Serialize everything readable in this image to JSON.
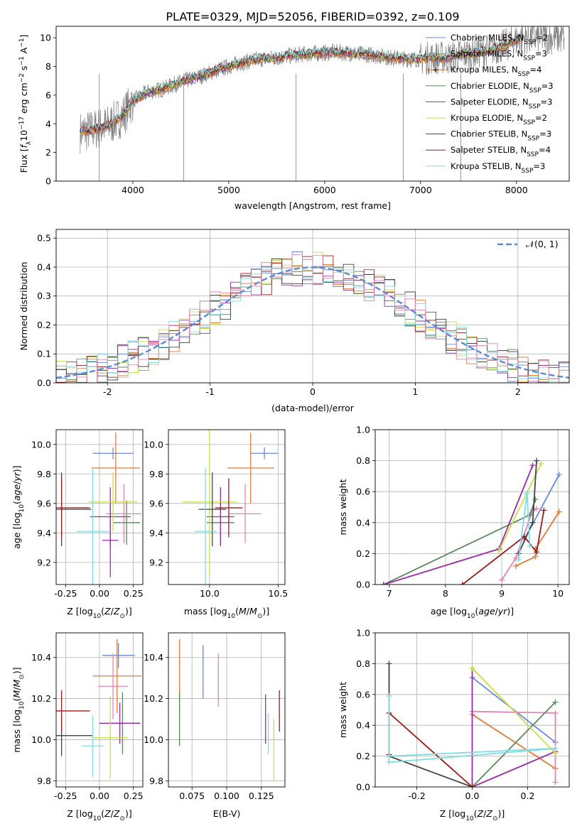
{
  "title": "PLATE=0329, MJD=52056, FIBERID=0392, z=0.109",
  "colors": {
    "MILES_Chabrier": "#6a89d6",
    "MILES_Salpeter": "#e07b39",
    "MILES_Kroupa": "#d9722b",
    "ELODIE_Chabrier": "#5a8a5a",
    "ELODIE_Salpeter": "#9b2aa8",
    "ELODIE_Kroupa": "#c8de4a",
    "STELIB_Chabrier": "#444444",
    "STELIB_Salpeter": "#9c1c1c",
    "STELIB_Kroupa": "#7fdde0",
    "pink": "#e882b4",
    "data": "#808080",
    "normal": "#5b8bd6"
  },
  "chart_data": [
    {
      "id": "spectrum",
      "type": "line",
      "xlabel": "wavelength [Angstrom, rest frame]",
      "ylabel": "Flux [f_λ 10^-17 erg cm^-2 s^-1 A^-1]",
      "xlim": [
        3200,
        8550
      ],
      "ylim": [
        0,
        10.8
      ],
      "xticks": [
        4000,
        5000,
        6000,
        7000,
        8000
      ],
      "yticks": [
        0,
        2,
        4,
        6,
        8,
        10
      ],
      "legend_position": "top-right",
      "legend": [
        {
          "label": "Chabrier MILES, N",
          "sub": "SSP",
          "eq": "=2",
          "color": "#6a89d6"
        },
        {
          "label": "Salpeter MILES, N",
          "sub": "SSP",
          "eq": "=3",
          "color": "#e07b39"
        },
        {
          "label": "Kroupa MILES, N",
          "sub": "SSP",
          "eq": "=4",
          "color": "#d9722b"
        },
        {
          "label": "Chabrier ELODIE, N",
          "sub": "SSP",
          "eq": "=3",
          "color": "#5a8a5a"
        },
        {
          "label": "Salpeter ELODIE, N",
          "sub": "SSP",
          "eq": "=3",
          "color": "#9b2aa8"
        },
        {
          "label": "Kroupa ELODIE, N",
          "sub": "SSP",
          "eq": "=2",
          "color": "#c8de4a"
        },
        {
          "label": "Chabrier STELIB, N",
          "sub": "SSP",
          "eq": "=3",
          "color": "#444444"
        },
        {
          "label": "Salpeter STELIB, N",
          "sub": "SSP",
          "eq": "=4",
          "color": "#9c1c1c"
        },
        {
          "label": "Kroupa STELIB, N",
          "sub": "SSP",
          "eq": "=3",
          "color": "#7fdde0"
        }
      ],
      "model_continuum": {
        "x": [
          3450,
          3600,
          3750,
          3900,
          4000,
          4150,
          4300,
          4500,
          4700,
          4900,
          5100,
          5300,
          5500,
          5700,
          5900,
          6100,
          6300,
          6500,
          6700,
          6900,
          7100,
          7300,
          7500,
          7700,
          7900,
          8050
        ],
        "y": [
          3.4,
          3.6,
          3.9,
          4.6,
          5.6,
          6.2,
          6.4,
          6.9,
          7.3,
          7.8,
          8.2,
          8.5,
          8.6,
          8.8,
          8.9,
          9.0,
          8.9,
          8.8,
          8.6,
          8.5,
          8.6,
          8.6,
          8.9,
          9.1,
          9.5,
          10.0
        ]
      },
      "data_dropouts": [
        [
          3650,
          0
        ],
        [
          4530,
          0
        ],
        [
          5700,
          0
        ],
        [
          6820,
          0
        ],
        [
          7420,
          0
        ]
      ]
    },
    {
      "id": "residuals",
      "type": "histogram",
      "xlabel": "(data-model)/error",
      "ylabel": "Normed distribution",
      "xlim": [
        -2.5,
        2.5
      ],
      "ylim": [
        0,
        0.53
      ],
      "xticks": [
        -2,
        -1,
        0,
        1,
        2
      ],
      "yticks": [
        0.0,
        0.1,
        0.2,
        0.3,
        0.4,
        0.5
      ],
      "grid": true,
      "legend_position": "top-right",
      "legend": [
        {
          "label": "N(0,1)",
          "color": "#5b8bd6",
          "style": "dashed"
        }
      ],
      "bin_width": 0.1
    },
    {
      "id": "age_vs_Z",
      "type": "errorbar",
      "xlabel": "Z [log10(Z/Z⊙)]",
      "ylabel": "age  [log10(age/yr)]",
      "xlim": [
        -0.32,
        0.32
      ],
      "ylim": [
        9.05,
        10.1
      ],
      "xticks": [
        -0.25,
        0.0,
        0.25
      ],
      "yticks": [
        9.2,
        9.4,
        9.6,
        9.8,
        10.0
      ],
      "points": [
        {
          "x": 0.1,
          "y": 9.94,
          "xerr": 0.15,
          "yerr": 0.04,
          "c": "#6a89d6"
        },
        {
          "x": 0.12,
          "y": 9.84,
          "xerr": 0.18,
          "yerr": 0.24,
          "c": "#e07b39"
        },
        {
          "x": 0.18,
          "y": 9.53,
          "xerr": 0.13,
          "yerr": 0.2,
          "c": "#e882b4"
        },
        {
          "x": 0.2,
          "y": 9.47,
          "xerr": 0.1,
          "yerr": 0.15,
          "c": "#5a8a5a"
        },
        {
          "x": 0.08,
          "y": 9.51,
          "xerr": 0.15,
          "yerr": 0.2,
          "c": "#9b2aa8"
        },
        {
          "x": 0.1,
          "y": 9.61,
          "xerr": 0.18,
          "yerr": 0.2,
          "c": "#c8de4a"
        },
        {
          "x": -0.28,
          "y": 9.56,
          "xerr": 0.22,
          "yerr": 0.25,
          "c": "#444444"
        },
        {
          "x": -0.28,
          "y": 9.57,
          "xerr": 0.21,
          "yerr": 0.2,
          "c": "#9c1c1c"
        },
        {
          "x": -0.05,
          "y": 9.41,
          "xerr": 0.12,
          "yerr": 0.43,
          "c": "#7fdde0"
        },
        {
          "x": 0.08,
          "y": 9.35,
          "xerr": 0.06,
          "yerr": 0.25,
          "c": "#9b2aa8"
        }
      ]
    },
    {
      "id": "age_vs_mass",
      "type": "errorbar",
      "xlabel": "mass [log10(M/M⊙)]",
      "ylabel": "",
      "xlim": [
        9.7,
        10.55
      ],
      "ylim": [
        9.05,
        10.1
      ],
      "xticks": [
        10.0,
        10.5
      ],
      "yticks": [
        9.2,
        9.4,
        9.6,
        9.8,
        10.0
      ],
      "points": [
        {
          "x": 10.4,
          "y": 9.94,
          "xerr": 0.1,
          "yerr": 0.04,
          "c": "#6a89d6"
        },
        {
          "x": 10.3,
          "y": 9.84,
          "xerr": 0.17,
          "yerr": 0.24,
          "c": "#e07b39"
        },
        {
          "x": 10.26,
          "y": 9.53,
          "xerr": 0.12,
          "yerr": 0.2,
          "c": "#e882b4"
        },
        {
          "x": 10.08,
          "y": 9.47,
          "xerr": 0.1,
          "yerr": 0.15,
          "c": "#5a8a5a"
        },
        {
          "x": 10.08,
          "y": 9.51,
          "xerr": 0.1,
          "yerr": 0.2,
          "c": "#9b2aa8"
        },
        {
          "x": 10.0,
          "y": 9.61,
          "xerr": 0.2,
          "yerr": 0.5,
          "c": "#c8de4a"
        },
        {
          "x": 10.02,
          "y": 9.56,
          "xerr": 0.1,
          "yerr": 0.25,
          "c": "#444444"
        },
        {
          "x": 10.14,
          "y": 9.57,
          "xerr": 0.1,
          "yerr": 0.2,
          "c": "#9c1c1c"
        },
        {
          "x": 9.97,
          "y": 9.41,
          "xerr": 0.08,
          "yerr": 0.43,
          "c": "#7fdde0"
        }
      ]
    },
    {
      "id": "weight_vs_age",
      "type": "line",
      "xlabel": "age  [log10(age/yr)]",
      "ylabel": "mass weight",
      "xlim": [
        6.75,
        10.2
      ],
      "ylim": [
        0,
        1.0
      ],
      "xticks": [
        7,
        8,
        9,
        10
      ],
      "yticks": [
        0.0,
        0.2,
        0.4,
        0.6,
        0.8,
        1.0
      ],
      "grid": true,
      "series": [
        {
          "c": "#6a89d6",
          "x": [
            9.4,
            10.02
          ],
          "y": [
            0.29,
            0.71
          ]
        },
        {
          "c": "#e07b39",
          "x": [
            9.25,
            9.6,
            9.6,
            10.02
          ],
          "y": [
            0.12,
            0.18,
            0.23,
            0.47
          ]
        },
        {
          "c": "#e882b4",
          "x": [
            9.0,
            9.25,
            9.55,
            9.62
          ],
          "y": [
            0.03,
            0.17,
            0.48,
            0.49
          ]
        },
        {
          "c": "#5a8a5a",
          "x": [
            6.9,
            9.5,
            9.6
          ],
          "y": [
            0.0,
            0.45,
            0.55
          ]
        },
        {
          "c": "#9b2aa8",
          "x": [
            6.9,
            8.95,
            9.55
          ],
          "y": [
            0.0,
            0.23,
            0.77
          ]
        },
        {
          "c": "#c8de4a",
          "x": [
            8.95,
            9.7
          ],
          "y": [
            0.22,
            0.78
          ]
        },
        {
          "c": "#444444",
          "x": [
            9.3,
            9.55,
            9.62
          ],
          "y": [
            0.2,
            0.4,
            0.8
          ]
        },
        {
          "c": "#9c1c1c",
          "x": [
            8.3,
            9.4,
            9.62,
            9.75
          ],
          "y": [
            0.0,
            0.31,
            0.21,
            0.48
          ]
        },
        {
          "c": "#7fdde0",
          "x": [
            9.3,
            9.45,
            9.5
          ],
          "y": [
            0.16,
            0.59,
            0.25
          ]
        }
      ]
    },
    {
      "id": "mass_vs_Z",
      "type": "errorbar",
      "xlabel": "Z [log10(Z/Z⊙)]",
      "ylabel": "mass [log10(M/M⊙)]",
      "xlim": [
        -0.32,
        0.32
      ],
      "ylim": [
        9.77,
        10.52
      ],
      "xticks": [
        -0.25,
        0.0,
        0.25
      ],
      "yticks": [
        9.8,
        10.0,
        10.2,
        10.4
      ],
      "points": [
        {
          "x": 0.14,
          "y": 10.41,
          "xerr": 0.12,
          "yerr": 0.06,
          "c": "#6a89d6"
        },
        {
          "x": 0.13,
          "y": 10.31,
          "xerr": 0.18,
          "yerr": 0.18,
          "c": "#e07b39"
        },
        {
          "x": 0.1,
          "y": 10.26,
          "xerr": 0.11,
          "yerr": 0.16,
          "c": "#e882b4"
        },
        {
          "x": 0.17,
          "y": 10.08,
          "xerr": 0.13,
          "yerr": 0.15,
          "c": "#5a8a5a"
        },
        {
          "x": 0.15,
          "y": 10.08,
          "xerr": 0.15,
          "yerr": 0.1,
          "c": "#9b2aa8"
        },
        {
          "x": 0.08,
          "y": 10.01,
          "xerr": 0.13,
          "yerr": 0.2,
          "c": "#c8de4a"
        },
        {
          "x": -0.28,
          "y": 10.02,
          "xerr": 0.23,
          "yerr": 0.1,
          "c": "#444444"
        },
        {
          "x": -0.28,
          "y": 10.14,
          "xerr": 0.21,
          "yerr": 0.1,
          "c": "#9c1c1c"
        },
        {
          "x": -0.05,
          "y": 9.97,
          "xerr": 0.08,
          "yerr": 0.15,
          "c": "#7fdde0"
        }
      ]
    },
    {
      "id": "mass_vs_ebv",
      "type": "errorbar",
      "xlabel": "E(B-V)",
      "ylabel": "",
      "xlim": [
        0.058,
        0.142
      ],
      "ylim": [
        9.77,
        10.52
      ],
      "xticks": [
        0.075,
        0.1,
        0.125
      ],
      "xticklabels": [
        "0.075",
        "0.100",
        "0.125"
      ],
      "yticks": [
        9.8,
        10.0,
        10.2,
        10.4
      ],
      "points": [
        {
          "x": 0.066,
          "y": 10.31,
          "yerr": 0.18,
          "c": "#e07b39"
        },
        {
          "x": 0.066,
          "y": 10.1,
          "yerr": 0.13,
          "c": "#5a8a5a"
        },
        {
          "x": 0.083,
          "y": 10.33,
          "yerr": 0.13,
          "c": "#6a89d6"
        },
        {
          "x": 0.094,
          "y": 10.29,
          "yerr": 0.13,
          "c": "#e882b4"
        },
        {
          "x": 0.128,
          "y": 10.1,
          "yerr": 0.12,
          "c": "#9b2aa8"
        },
        {
          "x": 0.13,
          "y": 10.03,
          "yerr": 0.1,
          "c": "#7fdde0"
        },
        {
          "x": 0.134,
          "y": 9.95,
          "yerr": 0.15,
          "c": "#c8de4a"
        },
        {
          "x": 0.138,
          "y": 10.14,
          "yerr": 0.1,
          "c": "#9c1c1c"
        }
      ]
    },
    {
      "id": "weight_vs_Z",
      "type": "line",
      "xlabel": "Z [log10(Z/Z⊙)]",
      "ylabel": "mass weight",
      "xlim": [
        -0.35,
        0.35
      ],
      "ylim": [
        0,
        1.0
      ],
      "xticks": [
        -0.2,
        0.0,
        0.2
      ],
      "yticks": [
        0.0,
        0.2,
        0.4,
        0.6,
        0.8,
        1.0
      ],
      "grid": true,
      "series": [
        {
          "c": "#6a89d6",
          "x": [
            0.0,
            0.3
          ],
          "y": [
            0.71,
            0.29
          ]
        },
        {
          "c": "#e07b39",
          "x": [
            0.0,
            0.3
          ],
          "y": [
            0.47,
            0.12
          ]
        },
        {
          "c": "#e882b4",
          "x": [
            0.0,
            0.3,
            0.3
          ],
          "y": [
            0.49,
            0.48,
            0.03
          ]
        },
        {
          "c": "#5a8a5a",
          "x": [
            0.0,
            0.3
          ],
          "y": [
            0.0,
            0.55
          ]
        },
        {
          "c": "#9b2aa8",
          "x": [
            0.0,
            0.0,
            0.3
          ],
          "y": [
            0.77,
            0.0,
            0.23
          ]
        },
        {
          "c": "#c8de4a",
          "x": [
            0.0,
            0.3
          ],
          "y": [
            0.77,
            0.22
          ]
        },
        {
          "c": "#444444",
          "x": [
            -0.3,
            -0.3,
            0.0
          ],
          "y": [
            0.8,
            0.2,
            0.0
          ]
        },
        {
          "c": "#9c1c1c",
          "x": [
            -0.3,
            -0.3,
            0.0
          ],
          "y": [
            0.21,
            0.48,
            0.0
          ]
        },
        {
          "c": "#7fdde0",
          "x": [
            -0.3,
            -0.3,
            0.3
          ],
          "y": [
            0.59,
            0.16,
            0.25
          ]
        },
        {
          "c": "#7fdde0",
          "x": [
            -0.3,
            0.3
          ],
          "y": [
            0.2,
            0.25
          ]
        }
      ]
    }
  ]
}
